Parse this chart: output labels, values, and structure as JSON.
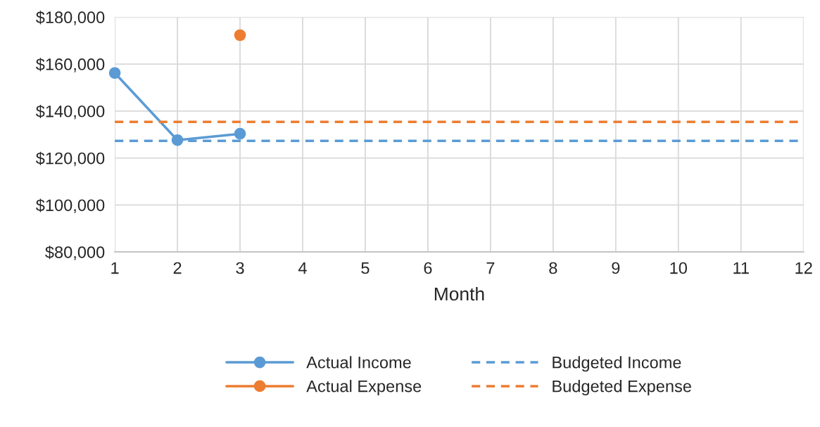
{
  "chart_data": {
    "type": "line",
    "xlabel": "Month",
    "x": [
      1,
      2,
      3,
      4,
      5,
      6,
      7,
      8,
      9,
      10,
      11,
      12
    ],
    "series": [
      {
        "name": "Actual Income",
        "color": "#5b9bd5",
        "marker": "circle",
        "line_style": "solid",
        "values": [
          156200,
          127600,
          130300,
          null,
          null,
          null,
          null,
          null,
          null,
          null,
          null,
          null
        ]
      },
      {
        "name": "Actual Expense",
        "color": "#ed7d31",
        "marker": "circle",
        "line_style": "solid",
        "values": [
          null,
          null,
          172300,
          null,
          null,
          null,
          null,
          null,
          null,
          null,
          null,
          null
        ]
      },
      {
        "name": "Budgeted Income",
        "color": "#5b9bd5",
        "marker": "none",
        "line_style": "dashed",
        "values": [
          127300,
          127300,
          127300,
          127300,
          127300,
          127300,
          127300,
          127300,
          127300,
          127300,
          127300,
          127300
        ]
      },
      {
        "name": "Budgeted Expense",
        "color": "#ed7d31",
        "marker": "none",
        "line_style": "dashed",
        "values": [
          135400,
          135400,
          135400,
          135400,
          135400,
          135400,
          135400,
          135400,
          135400,
          135400,
          135400,
          135400
        ]
      }
    ],
    "xlim": [
      1,
      12
    ],
    "xticks": [
      1,
      2,
      3,
      4,
      5,
      6,
      7,
      8,
      9,
      10,
      11,
      12
    ],
    "ylim": [
      80000,
      180000
    ],
    "yticks": [
      {
        "value": 80000,
        "label": "$80,000"
      },
      {
        "value": 100000,
        "label": "$100,000"
      },
      {
        "value": 120000,
        "label": "$120,000"
      },
      {
        "value": 140000,
        "label": "$140,000"
      },
      {
        "value": 160000,
        "label": "$160,000"
      },
      {
        "value": 180000,
        "label": "$180,000"
      }
    ],
    "grid": true,
    "legend": "bottom"
  }
}
